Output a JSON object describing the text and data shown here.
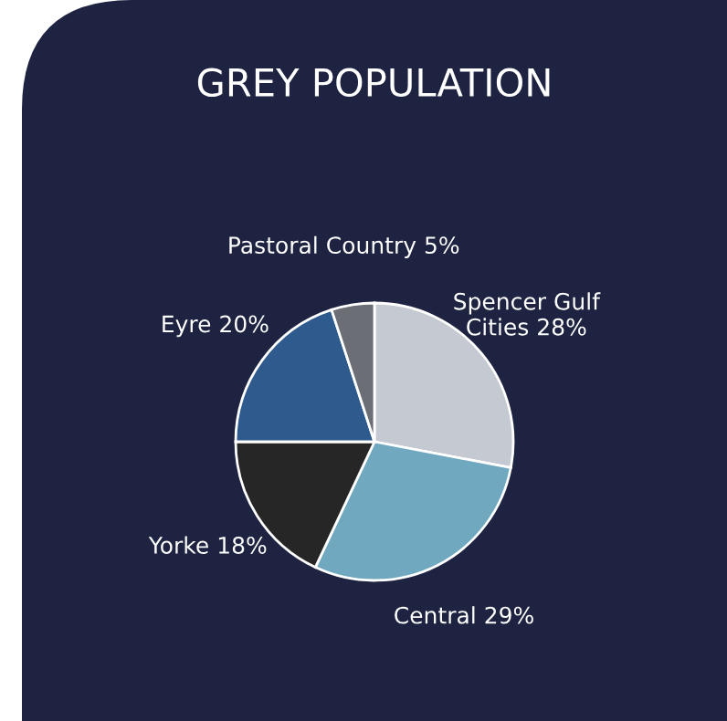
{
  "chart_data": {
    "type": "pie",
    "title": "GREY POPULATION",
    "categories": [
      "Spencer Gulf Cities",
      "Central",
      "Yorke",
      "Eyre",
      "Pastoral Country"
    ],
    "values": [
      28,
      29,
      18,
      20,
      5
    ],
    "value_labels": [
      "28%",
      "29%",
      "18%",
      "20%",
      "5%"
    ],
    "colors": [
      "#c5c9d1",
      "#6fa8bf",
      "#262626",
      "#2f5a8e",
      "#6b6e75"
    ],
    "legend": false
  }
}
